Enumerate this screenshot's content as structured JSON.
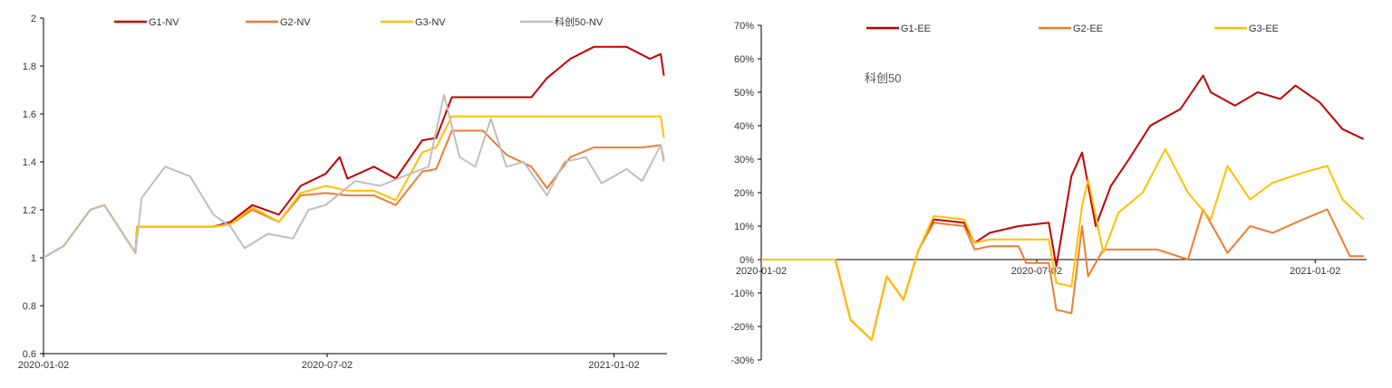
{
  "chart_data": [
    {
      "type": "line",
      "title": "",
      "xlabel": "",
      "ylabel": "",
      "ylim": [
        0.6,
        2.0
      ],
      "yticks": [
        "0.6",
        "0.8",
        "1",
        "1.2",
        "1.4",
        "1.6",
        "1.8",
        "2"
      ],
      "xtick_labels": [
        "2020-01-02",
        "2020-07-02",
        "2021-01-02"
      ],
      "xlim": [
        "2020-01-02",
        "2021-02-05"
      ],
      "grid": false,
      "legend_position": "top",
      "series": [
        {
          "name": "G1-NV",
          "color": "#C00000",
          "points": [
            [
              "2020-01-02",
              1.0
            ],
            [
              "2020-01-15",
              1.05
            ],
            [
              "2020-02-01",
              1.2
            ],
            [
              "2020-02-10",
              1.22
            ],
            [
              "2020-03-01",
              1.02
            ],
            [
              "2020-03-02",
              1.13
            ],
            [
              "2020-04-20",
              1.13
            ],
            [
              "2020-05-01",
              1.15
            ],
            [
              "2020-05-15",
              1.22
            ],
            [
              "2020-06-01",
              1.18
            ],
            [
              "2020-06-15",
              1.3
            ],
            [
              "2020-07-01",
              1.35
            ],
            [
              "2020-07-10",
              1.42
            ],
            [
              "2020-07-15",
              1.33
            ],
            [
              "2020-08-01",
              1.38
            ],
            [
              "2020-08-15",
              1.33
            ],
            [
              "2020-09-01",
              1.49
            ],
            [
              "2020-09-10",
              1.5
            ],
            [
              "2020-09-20",
              1.67
            ],
            [
              "2020-10-10",
              1.67
            ],
            [
              "2020-11-01",
              1.67
            ],
            [
              "2020-11-10",
              1.67
            ],
            [
              "2020-11-20",
              1.75
            ],
            [
              "2020-12-05",
              1.83
            ],
            [
              "2020-12-20",
              1.88
            ],
            [
              "2021-01-10",
              1.88
            ],
            [
              "2021-01-25",
              1.83
            ],
            [
              "2021-02-01",
              1.85
            ],
            [
              "2021-02-03",
              1.76
            ]
          ]
        },
        {
          "name": "G2-NV",
          "color": "#ED7D31",
          "points": [
            [
              "2020-01-02",
              1.0
            ],
            [
              "2020-01-15",
              1.05
            ],
            [
              "2020-02-01",
              1.2
            ],
            [
              "2020-02-10",
              1.22
            ],
            [
              "2020-03-01",
              1.02
            ],
            [
              "2020-03-02",
              1.13
            ],
            [
              "2020-04-20",
              1.13
            ],
            [
              "2020-05-01",
              1.14
            ],
            [
              "2020-05-15",
              1.2
            ],
            [
              "2020-06-01",
              1.15
            ],
            [
              "2020-06-15",
              1.26
            ],
            [
              "2020-07-01",
              1.27
            ],
            [
              "2020-07-15",
              1.26
            ],
            [
              "2020-08-01",
              1.26
            ],
            [
              "2020-08-15",
              1.22
            ],
            [
              "2020-09-01",
              1.36
            ],
            [
              "2020-09-10",
              1.37
            ],
            [
              "2020-09-20",
              1.53
            ],
            [
              "2020-10-10",
              1.53
            ],
            [
              "2020-10-25",
              1.43
            ],
            [
              "2020-11-10",
              1.38
            ],
            [
              "2020-11-20",
              1.29
            ],
            [
              "2020-12-05",
              1.42
            ],
            [
              "2020-12-20",
              1.46
            ],
            [
              "2021-01-20",
              1.46
            ],
            [
              "2021-02-01",
              1.47
            ],
            [
              "2021-02-03",
              1.41
            ]
          ]
        },
        {
          "name": "G3-NV",
          "color": "#FFC000",
          "points": [
            [
              "2020-01-02",
              1.0
            ],
            [
              "2020-01-15",
              1.05
            ],
            [
              "2020-02-01",
              1.2
            ],
            [
              "2020-02-10",
              1.22
            ],
            [
              "2020-03-01",
              1.02
            ],
            [
              "2020-03-02",
              1.13
            ],
            [
              "2020-04-20",
              1.13
            ],
            [
              "2020-05-01",
              1.14
            ],
            [
              "2020-05-15",
              1.21
            ],
            [
              "2020-06-01",
              1.15
            ],
            [
              "2020-06-15",
              1.27
            ],
            [
              "2020-07-01",
              1.3
            ],
            [
              "2020-07-15",
              1.28
            ],
            [
              "2020-08-01",
              1.28
            ],
            [
              "2020-08-15",
              1.24
            ],
            [
              "2020-09-01",
              1.44
            ],
            [
              "2020-09-10",
              1.46
            ],
            [
              "2020-09-20",
              1.59
            ],
            [
              "2020-10-10",
              1.59
            ],
            [
              "2020-11-10",
              1.59
            ],
            [
              "2020-12-20",
              1.59
            ],
            [
              "2021-01-20",
              1.59
            ],
            [
              "2021-02-01",
              1.59
            ],
            [
              "2021-02-03",
              1.5
            ]
          ]
        },
        {
          "name": "科创50-NV",
          "color": "#BFBFBF",
          "points": [
            [
              "2020-01-02",
              1.0
            ],
            [
              "2020-01-15",
              1.05
            ],
            [
              "2020-02-01",
              1.2
            ],
            [
              "2020-02-10",
              1.22
            ],
            [
              "2020-03-01",
              1.02
            ],
            [
              "2020-03-05",
              1.25
            ],
            [
              "2020-03-20",
              1.38
            ],
            [
              "2020-04-05",
              1.34
            ],
            [
              "2020-04-20",
              1.18
            ],
            [
              "2020-05-01",
              1.13
            ],
            [
              "2020-05-10",
              1.04
            ],
            [
              "2020-05-25",
              1.1
            ],
            [
              "2020-06-10",
              1.08
            ],
            [
              "2020-06-20",
              1.2
            ],
            [
              "2020-07-01",
              1.22
            ],
            [
              "2020-07-20",
              1.32
            ],
            [
              "2020-08-05",
              1.3
            ],
            [
              "2020-08-20",
              1.34
            ],
            [
              "2020-09-05",
              1.38
            ],
            [
              "2020-09-15",
              1.68
            ],
            [
              "2020-09-25",
              1.42
            ],
            [
              "2020-10-05",
              1.38
            ],
            [
              "2020-10-15",
              1.58
            ],
            [
              "2020-10-25",
              1.38
            ],
            [
              "2020-11-05",
              1.4
            ],
            [
              "2020-11-20",
              1.26
            ],
            [
              "2020-12-01",
              1.4
            ],
            [
              "2020-12-15",
              1.42
            ],
            [
              "2020-12-25",
              1.31
            ],
            [
              "2021-01-10",
              1.37
            ],
            [
              "2021-01-20",
              1.32
            ],
            [
              "2021-02-01",
              1.47
            ],
            [
              "2021-02-03",
              1.4
            ]
          ]
        }
      ]
    },
    {
      "type": "line",
      "title": "",
      "xlabel": "",
      "ylabel": "",
      "annotation": "科创50",
      "ylim": [
        -0.3,
        0.7
      ],
      "yticks": [
        "-30%",
        "-20%",
        "-10%",
        "0%",
        "10%",
        "20%",
        "30%",
        "40%",
        "50%",
        "60%",
        "70%"
      ],
      "xtick_labels": [
        "2020-01-02",
        "2020-07-02",
        "2021-01-02"
      ],
      "xlim": [
        "2020-01-02",
        "2021-02-05"
      ],
      "grid": false,
      "legend_position": "top",
      "series": [
        {
          "name": "G1-EE",
          "color": "#C00000",
          "points": [
            [
              "2020-01-02",
              0.0
            ],
            [
              "2020-02-20",
              0.0
            ],
            [
              "2020-03-01",
              -0.18
            ],
            [
              "2020-03-15",
              -0.24
            ],
            [
              "2020-03-25",
              -0.05
            ],
            [
              "2020-04-05",
              -0.12
            ],
            [
              "2020-04-15",
              0.03
            ],
            [
              "2020-04-25",
              0.12
            ],
            [
              "2020-05-15",
              0.11
            ],
            [
              "2020-05-22",
              0.05
            ],
            [
              "2020-06-01",
              0.08
            ],
            [
              "2020-06-20",
              0.1
            ],
            [
              "2020-07-10",
              0.11
            ],
            [
              "2020-07-15",
              -0.02
            ],
            [
              "2020-07-25",
              0.25
            ],
            [
              "2020-08-01",
              0.32
            ],
            [
              "2020-08-10",
              0.1
            ],
            [
              "2020-08-20",
              0.22
            ],
            [
              "2020-09-01",
              0.3
            ],
            [
              "2020-09-15",
              0.4
            ],
            [
              "2020-10-05",
              0.45
            ],
            [
              "2020-10-20",
              0.55
            ],
            [
              "2020-10-25",
              0.5
            ],
            [
              "2020-11-10",
              0.46
            ],
            [
              "2020-11-25",
              0.5
            ],
            [
              "2020-12-10",
              0.48
            ],
            [
              "2020-12-20",
              0.52
            ],
            [
              "2021-01-05",
              0.47
            ],
            [
              "2021-01-20",
              0.39
            ],
            [
              "2021-02-03",
              0.36
            ]
          ]
        },
        {
          "name": "G2-EE",
          "color": "#ED7D31",
          "points": [
            [
              "2020-01-02",
              0.0
            ],
            [
              "2020-02-20",
              0.0
            ],
            [
              "2020-03-01",
              -0.18
            ],
            [
              "2020-03-15",
              -0.24
            ],
            [
              "2020-03-25",
              -0.05
            ],
            [
              "2020-04-05",
              -0.12
            ],
            [
              "2020-04-15",
              0.03
            ],
            [
              "2020-04-25",
              0.11
            ],
            [
              "2020-05-15",
              0.1
            ],
            [
              "2020-05-22",
              0.03
            ],
            [
              "2020-06-01",
              0.04
            ],
            [
              "2020-06-20",
              0.04
            ],
            [
              "2020-06-25",
              -0.01
            ],
            [
              "2020-07-10",
              -0.01
            ],
            [
              "2020-07-15",
              -0.15
            ],
            [
              "2020-07-25",
              -0.16
            ],
            [
              "2020-08-01",
              0.1
            ],
            [
              "2020-08-05",
              -0.05
            ],
            [
              "2020-08-15",
              0.03
            ],
            [
              "2020-09-20",
              0.03
            ],
            [
              "2020-10-10",
              0.0
            ],
            [
              "2020-10-20",
              0.15
            ],
            [
              "2020-11-05",
              0.02
            ],
            [
              "2020-11-20",
              0.1
            ],
            [
              "2020-12-05",
              0.08
            ],
            [
              "2020-12-25",
              0.12
            ],
            [
              "2021-01-10",
              0.15
            ],
            [
              "2021-01-25",
              0.01
            ],
            [
              "2021-02-03",
              0.01
            ]
          ]
        },
        {
          "name": "G3-EE",
          "color": "#FFC000",
          "points": [
            [
              "2020-01-02",
              0.0
            ],
            [
              "2020-02-20",
              0.0
            ],
            [
              "2020-03-01",
              -0.18
            ],
            [
              "2020-03-15",
              -0.24
            ],
            [
              "2020-03-25",
              -0.05
            ],
            [
              "2020-04-05",
              -0.12
            ],
            [
              "2020-04-15",
              0.03
            ],
            [
              "2020-04-25",
              0.13
            ],
            [
              "2020-05-15",
              0.12
            ],
            [
              "2020-05-22",
              0.05
            ],
            [
              "2020-06-01",
              0.06
            ],
            [
              "2020-06-20",
              0.06
            ],
            [
              "2020-07-10",
              0.06
            ],
            [
              "2020-07-15",
              -0.07
            ],
            [
              "2020-07-25",
              -0.08
            ],
            [
              "2020-08-01",
              0.16
            ],
            [
              "2020-08-05",
              0.24
            ],
            [
              "2020-08-15",
              0.02
            ],
            [
              "2020-08-25",
              0.14
            ],
            [
              "2020-09-10",
              0.2
            ],
            [
              "2020-09-25",
              0.33
            ],
            [
              "2020-10-10",
              0.2
            ],
            [
              "2020-10-25",
              0.12
            ],
            [
              "2020-11-05",
              0.28
            ],
            [
              "2020-11-20",
              0.18
            ],
            [
              "2020-12-05",
              0.23
            ],
            [
              "2020-12-25",
              0.26
            ],
            [
              "2021-01-10",
              0.28
            ],
            [
              "2021-01-20",
              0.18
            ],
            [
              "2021-02-03",
              0.12
            ]
          ]
        }
      ]
    }
  ]
}
